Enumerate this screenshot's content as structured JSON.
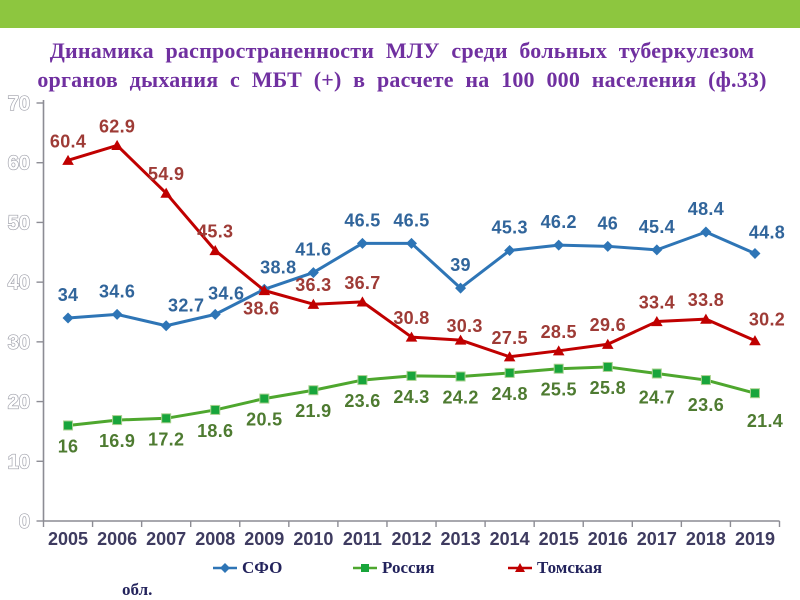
{
  "slide": {
    "top_bar_color": "#8DC63F",
    "background_color": "#FFFFFF"
  },
  "title": {
    "line1": "Динамика распространенности МЛУ среди больных туберкулезом",
    "line2": "органов дыхания с МБТ (+) в расчете на 100 000 населения (ф.33)",
    "color": "#7030A0"
  },
  "chart_data": {
    "type": "line",
    "title": "",
    "xlabel": "",
    "ylabel": "",
    "x_categories": [
      "2005",
      "2006",
      "2007",
      "2008",
      "2009",
      "2010",
      "2011",
      "2012",
      "2013",
      "2014",
      "2015",
      "2016",
      "2017",
      "2018",
      "2019"
    ],
    "series": [
      {
        "name": "СФО",
        "marker": "diamond",
        "line_color": "#2E75B6",
        "marker_color": "#2E75B6",
        "label_color": "#31659B",
        "values": [
          34,
          34.6,
          32.7,
          34.6,
          38.8,
          41.6,
          46.5,
          46.5,
          39,
          45.3,
          46.2,
          46,
          45.4,
          48.4,
          44.8
        ]
      },
      {
        "name": "Россия",
        "marker": "square",
        "line_color": "#4EA72E",
        "marker_color": "#18A53B",
        "label_color": "#4E7B31",
        "values": [
          16,
          16.9,
          17.2,
          18.6,
          20.5,
          21.9,
          23.6,
          24.3,
          24.2,
          24.8,
          25.5,
          25.8,
          24.7,
          23.6,
          21.4
        ]
      },
      {
        "name": "Томская обл.",
        "marker": "triangle",
        "line_color": "#C00000",
        "marker_color": "#C00000",
        "label_color": "#9E3B36",
        "values": [
          60.4,
          62.9,
          54.9,
          45.3,
          38.6,
          36.3,
          36.7,
          30.8,
          30.3,
          27.5,
          28.5,
          29.6,
          33.4,
          33.8,
          30.2
        ]
      }
    ],
    "ylim": [
      0,
      70
    ],
    "yticks": [
      "0",
      "10",
      "20",
      "30",
      "40",
      "50",
      "60",
      "70"
    ],
    "grid": false,
    "data_labels": true,
    "legend_position": "bottom"
  },
  "axes_style": {
    "axis_color": "#8C8C94",
    "ytick_fill": "#FFFFFF",
    "ytick_outline": "#9FA0AA",
    "year_label_color": "#3E3B60"
  },
  "legend": {
    "text_color": "#23235C",
    "items": [
      {
        "label": "СФО",
        "marker": "diamond",
        "line_color": "#2E75B6",
        "marker_color": "#2E75B6"
      },
      {
        "label": "Россия",
        "marker": "square",
        "line_color": "#4EA72E",
        "marker_color": "#18A53B"
      },
      {
        "label": "Томская",
        "marker": "triangle",
        "line_color": "#C00000",
        "marker_color": "#C00000"
      }
    ],
    "wrap_text": "обл."
  }
}
